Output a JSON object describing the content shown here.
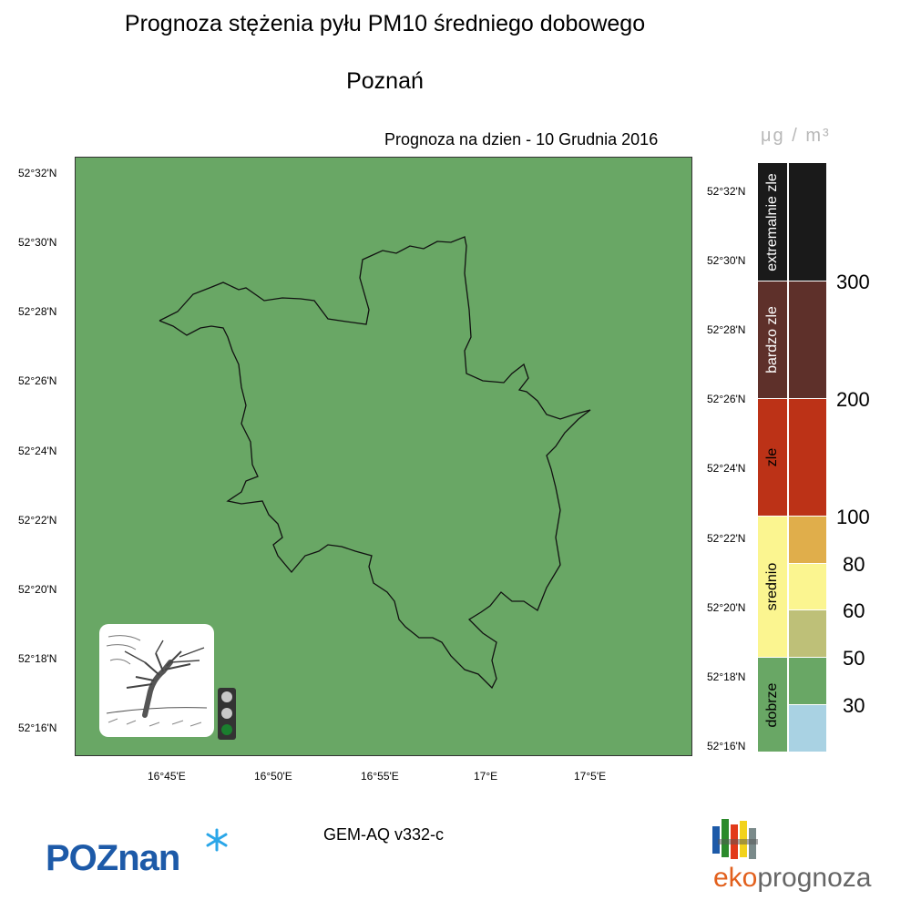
{
  "title": "Prognoza stężenia pyłu PM10 średniego dobowego",
  "city": "Poznań",
  "forecast_date": "Prognoza na dzien -  10 Grudnia 2016",
  "unit_label": "μg / m³",
  "model": "GEM-AQ v332-c",
  "lat_ticks_left": [
    "52°32'N",
    "52°30'N",
    "52°28'N",
    "52°26'N",
    "52°24'N",
    "52°22'N",
    "52°20'N",
    "52°18'N",
    "52°16'N"
  ],
  "lat_ticks_right": [
    "52°32'N",
    "52°30'N",
    "52°28'N",
    "52°26'N",
    "52°24'N",
    "52°22'N",
    "52°20'N",
    "52°18'N",
    "52°16'N"
  ],
  "lon_ticks": [
    "16°45'E",
    "16°50'E",
    "16°55'E",
    "17°E",
    "17°5'E"
  ],
  "map_fill_color": "#69a765",
  "legend": {
    "categories": [
      {
        "label": "extremalnie zle",
        "color": "#1a1a1a"
      },
      {
        "label": "bardzo zle",
        "color": "#5e302a"
      },
      {
        "label": "zle",
        "color": "#bc3217"
      },
      {
        "label": "srednio",
        "color": "#fbf590"
      },
      {
        "label": "dobrze",
        "color": "#69a765"
      }
    ],
    "scale_colors": [
      "#1a1a1a",
      "#5e302a",
      "#bc3217",
      "#e0ae4b",
      "#fbf590",
      "#bec078",
      "#69a765",
      "#a9d2e3"
    ],
    "thresholds": [
      "300",
      "200",
      "100",
      "80",
      "60",
      "50",
      "30"
    ]
  },
  "traffic_light": {
    "active": "green"
  },
  "logos": {
    "left": "POZnan",
    "right_prefix": "eko",
    "right_suffix": "prognoza"
  }
}
